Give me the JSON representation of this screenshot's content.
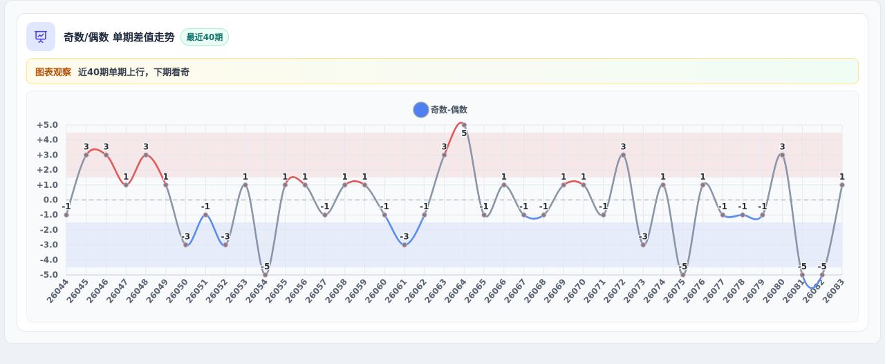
{
  "card": {
    "title": "奇数/偶数 单期差值走势",
    "badge": "最近40期",
    "icon": "presentation-chart-icon"
  },
  "note": {
    "label": "图表观察",
    "text": "近40期单期上行，下期看奇"
  },
  "colors": {
    "line": "#8a96a8",
    "up": "#e05a5a",
    "down": "#5b8def",
    "legend": "#4f7ff0",
    "point": "#8e7785",
    "upBand": "rgba(239,68,68,0.10)",
    "downBand": "rgba(96,130,240,0.11)"
  },
  "chart_data": {
    "type": "line",
    "title": "",
    "xlabel": "",
    "ylabel": "",
    "legend": "top-center",
    "grid": true,
    "smooth": true,
    "ylim": [
      -5,
      5
    ],
    "yticks": [
      "+5.0",
      "+4.0",
      "+3.0",
      "+2.0",
      "+1.0",
      "0.0",
      "-1.0",
      "-2.0",
      "-3.0",
      "-4.0",
      "-5.0"
    ],
    "ytick_values": [
      5,
      4,
      3,
      2,
      1,
      0,
      -1,
      -2,
      -3,
      -4,
      -5
    ],
    "bands": [
      {
        "from": 1.5,
        "to": 4.5,
        "kind": "up"
      },
      {
        "from": -4.5,
        "to": -1.5,
        "kind": "down"
      }
    ],
    "reference_line": 0,
    "categories": [
      "26044",
      "26045",
      "26046",
      "26047",
      "26048",
      "26049",
      "26050",
      "26051",
      "26052",
      "26053",
      "26054",
      "26055",
      "26056",
      "26057",
      "26058",
      "26059",
      "26060",
      "26061",
      "26062",
      "26063",
      "26064",
      "26065",
      "26066",
      "26067",
      "26068",
      "26069",
      "26070",
      "26071",
      "26072",
      "26073",
      "26074",
      "26075",
      "26076",
      "26077",
      "26078",
      "26079",
      "26080",
      "26081",
      "26082",
      "26083"
    ],
    "series": [
      {
        "name": "奇数-偶数",
        "values": [
          -1,
          3,
          3,
          1,
          3,
          1,
          -3,
          -1,
          -3,
          1,
          -5,
          1,
          1,
          -1,
          1,
          1,
          -1,
          -3,
          -1,
          3,
          5,
          -1,
          1,
          -1,
          -1,
          1,
          1,
          -1,
          3,
          -3,
          1,
          -5,
          1,
          -1,
          -1,
          -1,
          3,
          -5,
          -5,
          1
        ]
      }
    ]
  }
}
